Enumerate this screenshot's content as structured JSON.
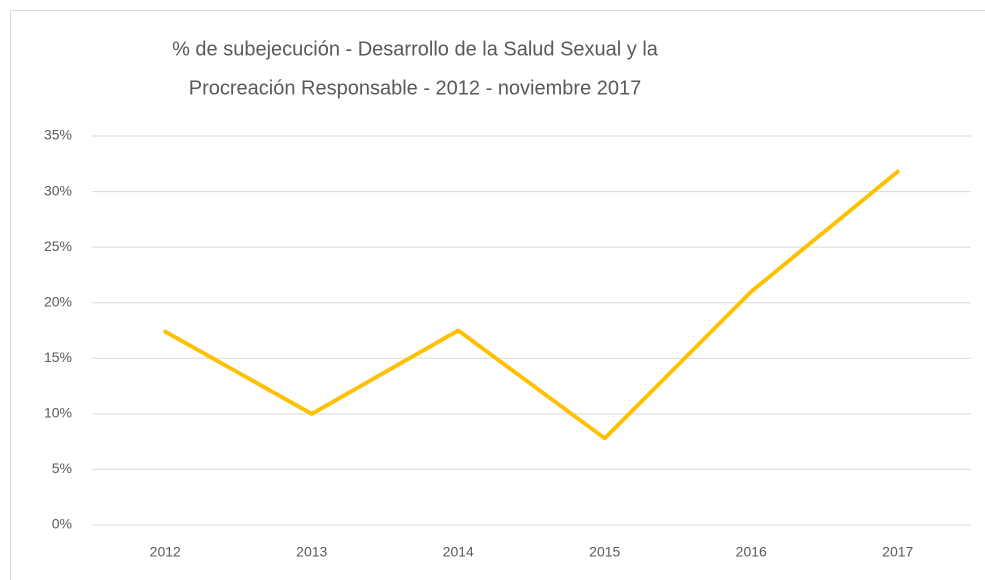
{
  "chart_data": {
    "type": "line",
    "title": [
      "% de subejecución - Desarrollo de la Salud Sexual y la",
      "Procreación Responsable - 2012 - noviembre 2017"
    ],
    "categories": [
      "2012",
      "2013",
      "2014",
      "2015",
      "2016",
      "2017"
    ],
    "values": [
      17.4,
      10.0,
      17.5,
      7.8,
      21.0,
      31.8
    ],
    "color": "#ffc000",
    "ylim": [
      0,
      35
    ],
    "yticks": [
      {
        "value": 0,
        "label": "0%"
      },
      {
        "value": 5,
        "label": "5%"
      },
      {
        "value": 10,
        "label": "10%"
      },
      {
        "value": 15,
        "label": "15%"
      },
      {
        "value": 20,
        "label": "20%"
      },
      {
        "value": 25,
        "label": "25%"
      },
      {
        "value": 30,
        "label": "30%"
      },
      {
        "value": 35,
        "label": "35%"
      }
    ],
    "grid": true
  }
}
